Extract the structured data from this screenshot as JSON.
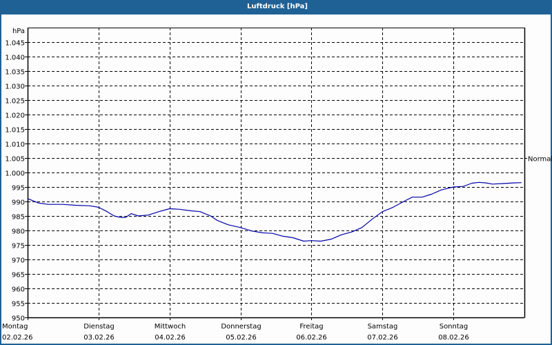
{
  "window": {
    "title": "Luftdruck [hPa]"
  },
  "colors": {
    "titlebar": "#1f6195",
    "border": "#1f6195",
    "line": "#0000aa",
    "grid": "#000000"
  },
  "chart_data": {
    "type": "line",
    "title": "Luftdruck [hPa]",
    "ylabel": "hPa",
    "xlabel": "",
    "ylim": [
      950,
      1050
    ],
    "grid": true,
    "legend": null,
    "y_ticks": [
      "950",
      "955",
      "960",
      "965",
      "970",
      "975",
      "980",
      "985",
      "990",
      "995",
      "1.000",
      "1.005",
      "1.010",
      "1.015",
      "1.020",
      "1.025",
      "1.030",
      "1.035",
      "1.040",
      "1.045"
    ],
    "x_ticks": [
      {
        "day": "Montag",
        "date": "02.02.26"
      },
      {
        "day": "Dienstag",
        "date": "03.02.26"
      },
      {
        "day": "Mittwoch",
        "date": "04.02.26"
      },
      {
        "day": "Donnerstag",
        "date": "05.02.26"
      },
      {
        "day": "Freitag",
        "date": "06.02.26"
      },
      {
        "day": "Samstag",
        "date": "07.02.26"
      },
      {
        "day": "Sonntag",
        "date": "08.02.26"
      }
    ],
    "annotations": [
      {
        "label": "Normal",
        "y": 1005
      }
    ],
    "series": [
      {
        "name": "Luftdruck",
        "x_days": [
          0,
          0.15,
          0.29,
          0.49,
          0.68,
          0.88,
          1.0,
          1.12,
          1.22,
          1.31,
          1.38,
          1.46,
          1.56,
          1.7,
          1.85,
          2.0,
          2.14,
          2.29,
          2.43,
          2.58,
          2.67,
          2.82,
          3.0,
          3.16,
          3.31,
          3.45,
          3.6,
          3.74,
          3.89,
          4.0,
          4.13,
          4.28,
          4.42,
          4.57,
          4.71,
          4.86,
          5.0,
          5.15,
          5.3,
          5.42,
          5.56,
          5.69,
          5.83,
          6.0,
          6.14,
          6.26,
          6.36,
          6.46,
          6.55,
          6.7,
          6.84,
          6.96
        ],
        "values": [
          991,
          989.5,
          989,
          989,
          988.7,
          988.5,
          988,
          986.5,
          985,
          984.5,
          984.5,
          985.8,
          985,
          985.3,
          986.5,
          987.5,
          987.3,
          986.8,
          986.5,
          985,
          983.5,
          982,
          981,
          979.8,
          979.2,
          979,
          978,
          977.5,
          976.3,
          976.5,
          976.3,
          977,
          978.5,
          979.5,
          981,
          984,
          986.5,
          988,
          990,
          991.5,
          991.5,
          992.5,
          994,
          995,
          995.2,
          996.3,
          996.6,
          996.4,
          996,
          996.2,
          996.4,
          996.5
        ]
      }
    ]
  }
}
